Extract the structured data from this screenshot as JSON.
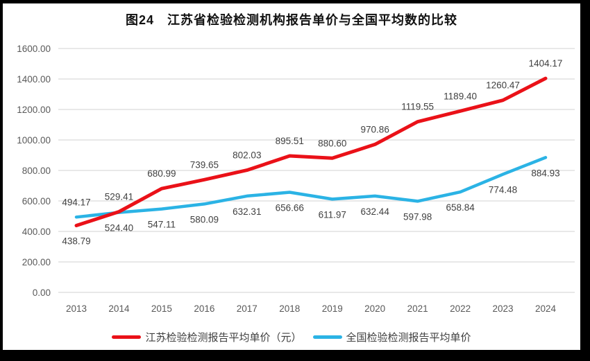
{
  "title": "图24　江苏省检验检测机构报告单价与全国平均数的比较",
  "colors": {
    "series_red": "#ea1118",
    "series_blue": "#2bb3e5",
    "gridline": "#d9d9d9",
    "tick_text": "#595959",
    "data_label_text": "#404040",
    "frame_border": "#000000",
    "background": "#ffffff"
  },
  "chart_data": {
    "type": "line",
    "title": "图24　江苏省检验检测机构报告单价与全国平均数的比较",
    "categories": [
      "2013",
      "2014",
      "2015",
      "2016",
      "2017",
      "2018",
      "2019",
      "2020",
      "2021",
      "2022",
      "2023",
      "2024"
    ],
    "series": [
      {
        "name": "江苏检验检测报告平均单价（元）",
        "color": "#ea1118",
        "values": [
          438.79,
          529.41,
          680.99,
          739.65,
          802.03,
          895.51,
          880.6,
          970.86,
          1119.55,
          1189.4,
          1260.47,
          1404.17
        ]
      },
      {
        "name": "全国检验检测报告平均单价",
        "color": "#2bb3e5",
        "values": [
          494.17,
          524.4,
          547.11,
          580.09,
          632.31,
          656.66,
          611.97,
          632.44,
          597.98,
          658.84,
          774.48,
          884.93
        ]
      }
    ],
    "xlabel": "",
    "ylabel": "",
    "ylim": [
      0,
      1600
    ],
    "ytick_step": 200,
    "ytick_labels": [
      "0.00",
      "200.00",
      "400.00",
      "600.00",
      "800.00",
      "1000.00",
      "1200.00",
      "1400.00",
      "1600.00"
    ],
    "grid": true,
    "data_labels": true,
    "data_label_decimals": 2,
    "legend_position": "bottom"
  }
}
